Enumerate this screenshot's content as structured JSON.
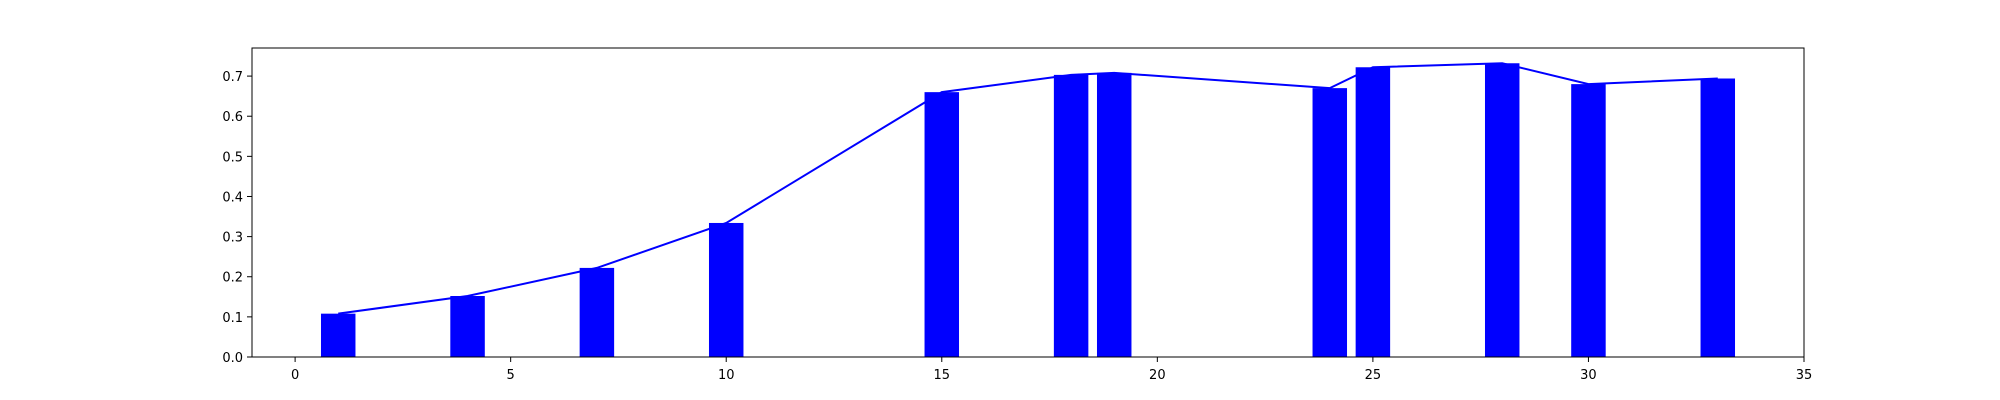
{
  "chart_data": {
    "type": "bar",
    "title": "",
    "xlabel": "",
    "ylabel": "",
    "xlim": [
      -1,
      35
    ],
    "ylim": [
      0,
      0.77
    ],
    "x_ticks": [
      0,
      5,
      10,
      15,
      20,
      25,
      30,
      35
    ],
    "y_ticks": [
      0.0,
      0.1,
      0.2,
      0.3,
      0.4,
      0.5,
      0.6,
      0.7
    ],
    "y_tick_labels": [
      "0.0",
      "0.1",
      "0.2",
      "0.3",
      "0.4",
      "0.5",
      "0.6",
      "0.7"
    ],
    "grid": false,
    "legend": "none",
    "bar_width": 0.8,
    "series": [
      {
        "type": "bar",
        "color": "#0000ff",
        "x": [
          1,
          4,
          7,
          10,
          15,
          18,
          19,
          24,
          25,
          28,
          30,
          33
        ],
        "values": [
          0.108,
          0.152,
          0.222,
          0.334,
          0.66,
          0.703,
          0.708,
          0.67,
          0.722,
          0.732,
          0.68,
          0.694
        ]
      },
      {
        "type": "line",
        "color": "#0000ff",
        "x": [
          1,
          4,
          7,
          10,
          15,
          18,
          19,
          24,
          25,
          28,
          30,
          33
        ],
        "values": [
          0.108,
          0.152,
          0.222,
          0.334,
          0.66,
          0.703,
          0.708,
          0.67,
          0.722,
          0.732,
          0.68,
          0.694
        ]
      }
    ]
  }
}
